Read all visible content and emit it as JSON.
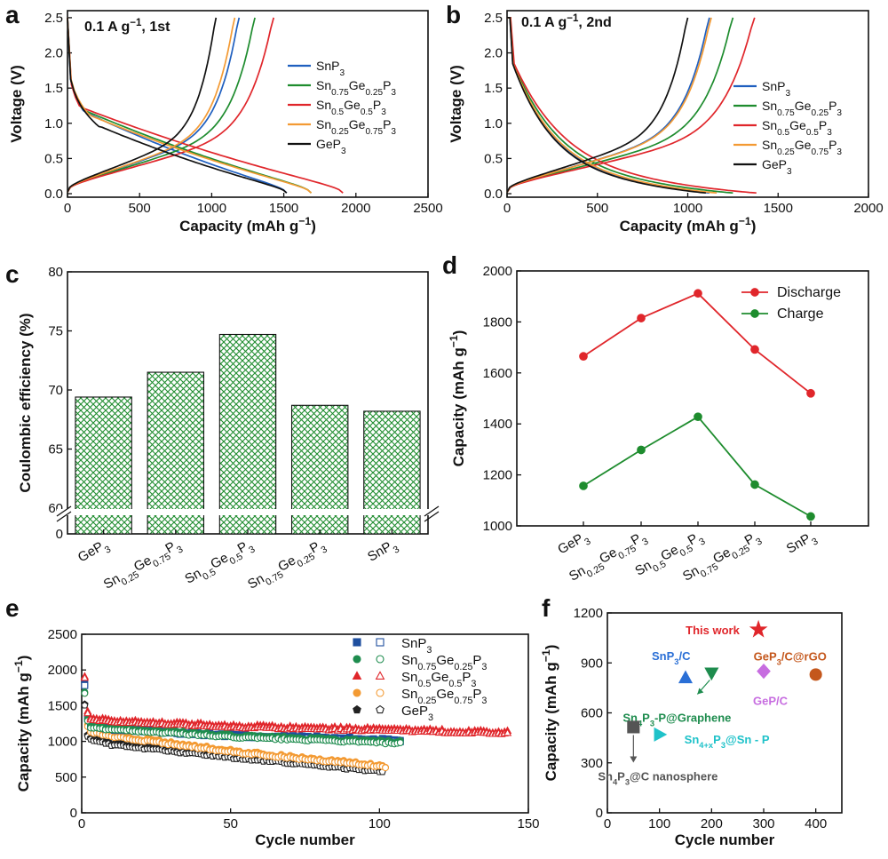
{
  "figure": {
    "panel_letters": [
      "a",
      "b",
      "c",
      "d",
      "e",
      "f"
    ]
  },
  "chart_data": [
    {
      "panel": "a",
      "type": "line",
      "annotation": "0.1 A g⁻¹, 1st",
      "xlabel": "Capacity (mAh g⁻¹)",
      "ylabel": "Voltage (V)",
      "xlim": [
        0,
        2500
      ],
      "ylim": [
        -0.05,
        2.6
      ],
      "xticks": [
        0,
        500,
        1000,
        1500,
        2000,
        2500
      ],
      "yticks": [
        0.0,
        0.5,
        1.0,
        1.5,
        2.0,
        2.5
      ],
      "legend_position": "right",
      "series": [
        {
          "name": "SnP₃",
          "color": "#1f5fbf",
          "discharge_cap": 1520,
          "charge_cap": 1190,
          "plateau_v": 1.15,
          "knee_cap": 120
        },
        {
          "name": "Sn₀.₇₅Ge₀.₂₅P₃",
          "color": "#1e8c2e",
          "discharge_cap": 1690,
          "charge_cap": 1300,
          "plateau_v": 1.18,
          "knee_cap": 110
        },
        {
          "name": "Sn₀.₅Ge₀.₅P₃",
          "color": "#e0262b",
          "discharge_cap": 1910,
          "charge_cap": 1430,
          "plateau_v": 1.22,
          "knee_cap": 90
        },
        {
          "name": "Sn₀.₂₅Ge₀.₇₅P₃",
          "color": "#f39a33",
          "discharge_cap": 1690,
          "charge_cap": 1160,
          "plateau_v": 1.1,
          "knee_cap": 160
        },
        {
          "name": "GeP₃",
          "color": "#111111",
          "discharge_cap": 1520,
          "charge_cap": 1030,
          "plateau_v": 0.95,
          "knee_cap": 220
        }
      ]
    },
    {
      "panel": "b",
      "type": "line",
      "annotation": "0.1 A g⁻¹, 2nd",
      "xlabel": "Capacity (mAh g⁻¹)",
      "ylabel": "Voltage (V)",
      "xlim": [
        0,
        2000
      ],
      "ylim": [
        -0.05,
        2.6
      ],
      "xticks": [
        0,
        500,
        1000,
        1500,
        2000
      ],
      "yticks": [
        0.0,
        0.5,
        1.0,
        1.5,
        2.0,
        2.5
      ],
      "legend_position": "right",
      "series": [
        {
          "name": "SnP₃",
          "color": "#1f5fbf",
          "discharge_cap": 1120,
          "charge_cap": 1120
        },
        {
          "name": "Sn₀.₇₅Ge₀.₂₅P₃",
          "color": "#1e8c2e",
          "discharge_cap": 1250,
          "charge_cap": 1250
        },
        {
          "name": "Sn₀.₅Ge₀.₅P₃",
          "color": "#e0262b",
          "discharge_cap": 1380,
          "charge_cap": 1370
        },
        {
          "name": "Sn₀.₂₅Ge₀.₇₅P₃",
          "color": "#f39a33",
          "discharge_cap": 1160,
          "charge_cap": 1130
        },
        {
          "name": "GeP₃",
          "color": "#111111",
          "discharge_cap": 1100,
          "charge_cap": 1000
        }
      ]
    },
    {
      "panel": "c",
      "type": "bar",
      "ylabel": "Coulombic efficiency (%)",
      "ylim": [
        60,
        80
      ],
      "yticks": [
        65,
        70,
        75,
        80
      ],
      "ytick_break_labels": [
        "60",
        "0"
      ],
      "categories": [
        "GeP₃",
        "Sn₀.₂₅Ge₀.₇₅P₃",
        "Sn₀.₅Ge₀.₅P₃",
        "Sn₀.₇₅Ge₀.₂₅P₃",
        "SnP₃"
      ],
      "values": [
        69.4,
        71.5,
        74.7,
        68.7,
        68.2
      ],
      "bar_color": "#1e8c2e"
    },
    {
      "panel": "d",
      "type": "line",
      "ylabel": "Capacity (mAh g⁻¹)",
      "ylim": [
        1000,
        2000
      ],
      "yticks": [
        1000,
        1200,
        1400,
        1600,
        1800,
        2000
      ],
      "legend_position": "top-right",
      "categories": [
        "GeP₃",
        "Sn₀.₂₅Ge₀.₇₅P₃",
        "Sn₀.₅Ge₀.₅P₃",
        "Sn₀.₇₅Ge₀.₂₅P₃",
        "SnP₃"
      ],
      "series": [
        {
          "name": "Discharge",
          "color": "#e0262b",
          "values": [
            1665,
            1815,
            1912,
            1692,
            1520
          ]
        },
        {
          "name": "Charge",
          "color": "#1e8c2e",
          "values": [
            1157,
            1298,
            1428,
            1162,
            1037
          ]
        }
      ]
    },
    {
      "panel": "e",
      "type": "scatter",
      "xlabel": "Cycle number",
      "ylabel": "Capacity (mAh g⁻¹)",
      "xlim": [
        0,
        150
      ],
      "ylim": [
        0,
        2500
      ],
      "xticks": [
        0,
        50,
        100,
        150
      ],
      "yticks": [
        0,
        500,
        1000,
        1500,
        2000,
        2500
      ],
      "legend_position": "top-right",
      "series": [
        {
          "name": "SnP₃",
          "color": "#1f4f9f",
          "marker": "square",
          "cycles": 107,
          "first": [
            1800,
            1330,
            1220
          ],
          "c10": 1180,
          "c50": 1080,
          "end": 1010
        },
        {
          "name": "Sn₀.₇₅Ge₀.₂₅P₃",
          "color": "#1e8c4e",
          "marker": "circle",
          "cycles": 107,
          "first": [
            1690,
            1300,
            1200
          ],
          "c10": 1180,
          "c50": 1070,
          "end": 980
        },
        {
          "name": "Sn₀.₅Ge₀.₅P₃",
          "color": "#e0262b",
          "marker": "triangle",
          "cycles": 143,
          "first": [
            1910,
            1410,
            1320
          ],
          "c10": 1290,
          "c50": 1210,
          "end": 1120
        },
        {
          "name": "Sn₀.₂₅Ge₀.₇₅P₃",
          "color": "#f39a33",
          "marker": "circle",
          "cycles": 102,
          "first": [
            1690,
            1220,
            1140
          ],
          "c10": 1080,
          "c50": 860,
          "end": 650
        },
        {
          "name": "GeP₃",
          "color": "#222222",
          "marker": "pentagon",
          "cycles": 101,
          "first": [
            1520,
            1080,
            1040
          ],
          "c10": 960,
          "c50": 780,
          "end": 580
        }
      ]
    },
    {
      "panel": "f",
      "type": "scatter",
      "xlabel": "Cycle number",
      "ylabel": "Capacity (mAh g⁻¹)",
      "xlim": [
        0,
        450
      ],
      "ylim": [
        0,
        1200
      ],
      "xticks": [
        0,
        100,
        200,
        300,
        400
      ],
      "yticks": [
        0,
        300,
        600,
        900,
        1200
      ],
      "points": [
        {
          "label": "This work",
          "x": 290,
          "y": 1100,
          "marker": "star",
          "color": "#e0262b"
        },
        {
          "label": "SnP₃/C",
          "x": 150,
          "y": 810,
          "marker": "triangle",
          "color": "#2a6fd6"
        },
        {
          "label": "Sn₄P₃-P@Graphene",
          "x": 200,
          "y": 840,
          "marker": "triangle-down",
          "color": "#1e8c4e"
        },
        {
          "label": "GeP/C",
          "x": 300,
          "y": 850,
          "marker": "diamond",
          "color": "#c76de0"
        },
        {
          "label": "GeP₃/C@rGO",
          "x": 400,
          "y": 830,
          "marker": "circle",
          "color": "#c4571c"
        },
        {
          "label": "Sn₄₊ₓP₃@Sn - P",
          "x": 100,
          "y": 470,
          "marker": "triangle-right",
          "color": "#1fc2c9"
        },
        {
          "label": "Sn₄P₃@C nanosphere",
          "x": 50,
          "y": 515,
          "marker": "square",
          "color": "#555555"
        }
      ]
    }
  ]
}
